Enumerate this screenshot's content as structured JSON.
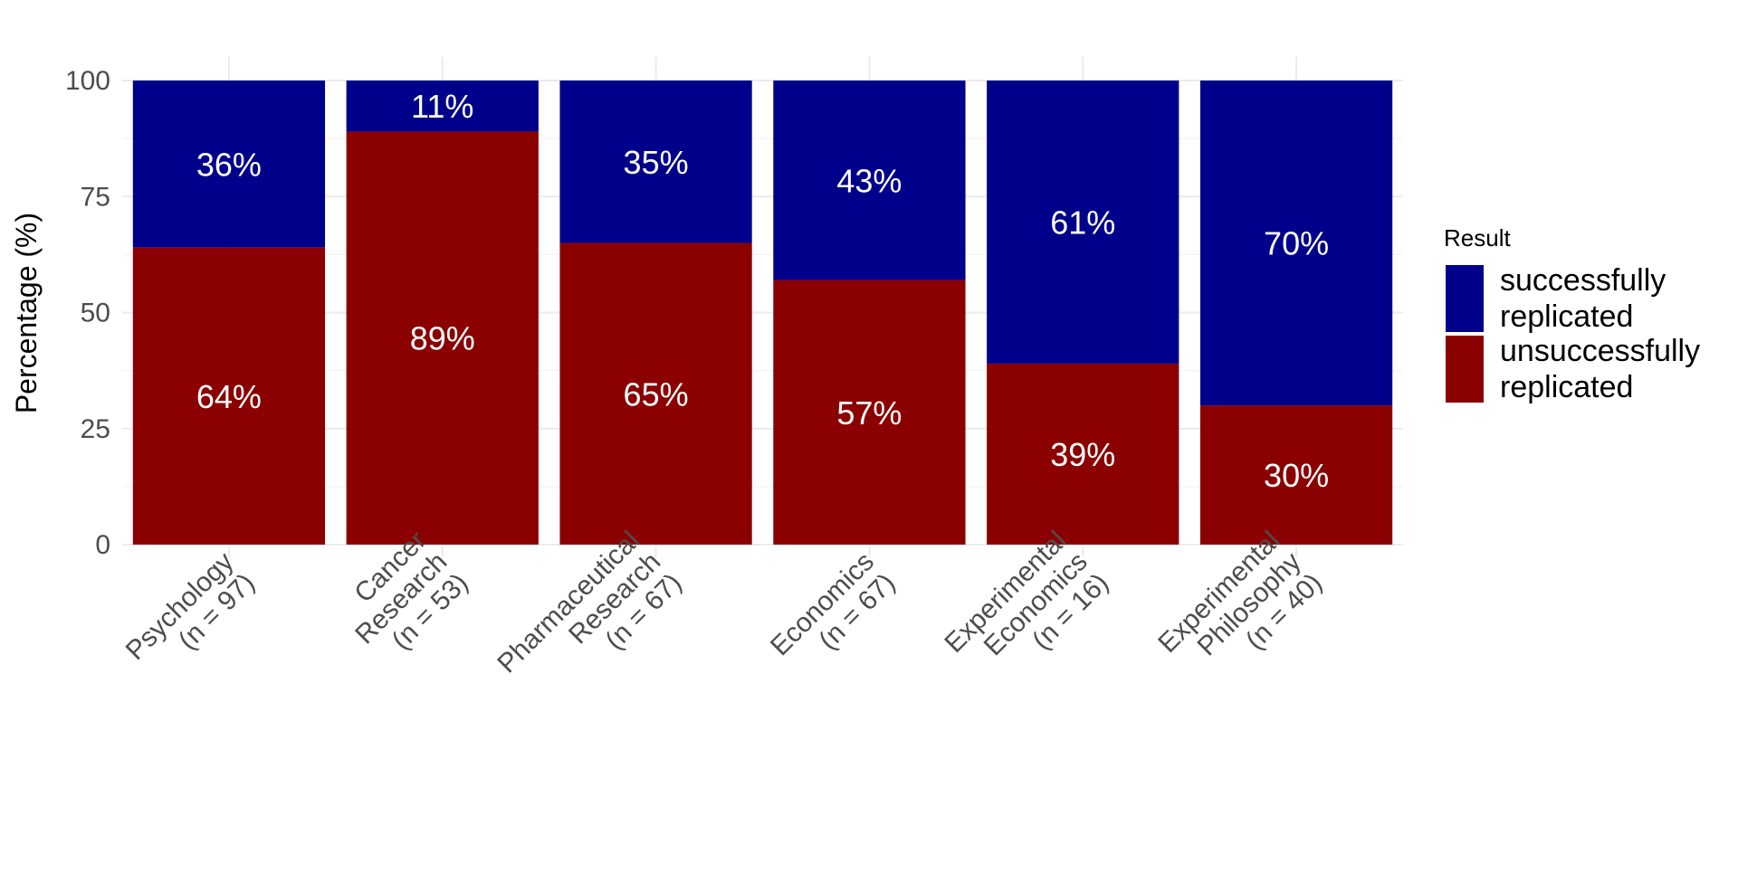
{
  "chart_data": {
    "type": "bar",
    "stacked": true,
    "title": "",
    "xlabel": "",
    "ylabel": "Percentage (%)",
    "ylim": [
      0,
      100
    ],
    "yticks": [
      "0",
      "25",
      "50",
      "75",
      "100"
    ],
    "grid": true,
    "categories": [
      [
        "Psychology",
        "(n = 97)"
      ],
      [
        "Cancer",
        "Research",
        "(n = 53)"
      ],
      [
        "Pharmaceutical",
        "Research",
        "(n = 67)"
      ],
      [
        "Economics",
        "(n = 67)"
      ],
      [
        "Experimental",
        "Economics",
        "(n = 16)"
      ],
      [
        "Experimental",
        "Philosophy",
        "(n = 40)"
      ]
    ],
    "series": [
      {
        "name": "unsuccessfully replicated",
        "name_lines": [
          "unsuccessfully",
          "replicated"
        ],
        "color": "#8b0000",
        "values": [
          64,
          89,
          65,
          57,
          39,
          30
        ],
        "labels": [
          "64%",
          "89%",
          "65%",
          "57%",
          "39%",
          "30%"
        ]
      },
      {
        "name": "successfully replicated",
        "name_lines": [
          "successfully",
          "replicated"
        ],
        "color": "#00008b",
        "values": [
          36,
          11,
          35,
          43,
          61,
          70
        ],
        "labels": [
          "36%",
          "11%",
          "35%",
          "43%",
          "61%",
          "70%"
        ]
      }
    ],
    "legend": {
      "title": "Result",
      "position": "right",
      "order": [
        "successfully replicated",
        "unsuccessfully replicated"
      ]
    }
  }
}
